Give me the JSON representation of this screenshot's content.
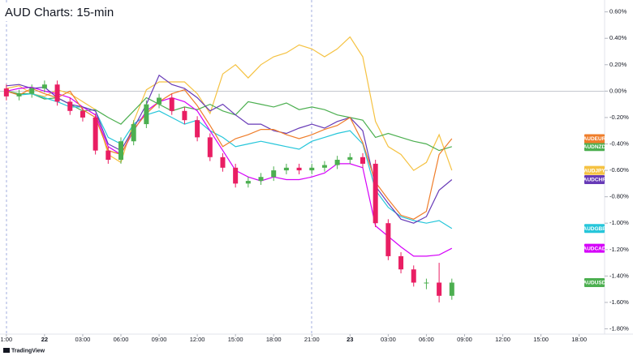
{
  "chart_data": {
    "type": "line",
    "title": "AUD Charts: 15-min",
    "source": "TradingView",
    "x": [
      0,
      1,
      2,
      3,
      4,
      5,
      6,
      7,
      8,
      9,
      10,
      11,
      12,
      13,
      14,
      15,
      16,
      17,
      18,
      19,
      20,
      21,
      22,
      23,
      24,
      25,
      26,
      27,
      28,
      29,
      30,
      31,
      32,
      33,
      34,
      35
    ],
    "xlim": [
      -0.5,
      47
    ],
    "ylim": [
      -1.84,
      0.69
    ],
    "reference_line": 0,
    "xticks": [
      {
        "value": 0,
        "label": "1:00"
      },
      {
        "value": 3,
        "label": "22"
      },
      {
        "value": 6,
        "label": "03:00"
      },
      {
        "value": 9,
        "label": "06:00"
      },
      {
        "value": 12,
        "label": "09:00"
      },
      {
        "value": 15,
        "label": "12:00"
      },
      {
        "value": 18,
        "label": "15:00"
      },
      {
        "value": 21,
        "label": "18:00"
      },
      {
        "value": 24,
        "label": "21:00"
      },
      {
        "value": 27,
        "label": "23"
      },
      {
        "value": 30,
        "label": "03:00"
      },
      {
        "value": 33,
        "label": "06:00"
      },
      {
        "value": 36,
        "label": "09:00"
      },
      {
        "value": 39,
        "label": "12:00"
      },
      {
        "value": 42,
        "label": "15:00"
      },
      {
        "value": 45,
        "label": "18:00"
      }
    ],
    "yticks": [
      {
        "value": 0.6,
        "label": "0.60%"
      },
      {
        "value": 0.4,
        "label": "0.40%"
      },
      {
        "value": 0.2,
        "label": "0.20%"
      },
      {
        "value": 0,
        "label": "0.00%"
      },
      {
        "value": -0.2,
        "label": "-0.20%"
      },
      {
        "value": -0.4,
        "label": "-0.40%"
      },
      {
        "value": -0.6,
        "label": "-0.60%"
      },
      {
        "value": -0.8,
        "label": "-0.80%"
      },
      {
        "value": -1.0,
        "label": "-1.00%"
      },
      {
        "value": -1.2,
        "label": "-1.20%"
      },
      {
        "value": -1.4,
        "label": "-1.40%"
      },
      {
        "value": -1.6,
        "label": "-1.60%"
      },
      {
        "value": -1.8,
        "label": "-1.80%"
      }
    ],
    "series": [
      {
        "name": "AUDJPY",
        "type": "line",
        "color": "#f5c242",
        "values": [
          0.02,
          0.04,
          -0.02,
          -0.04,
          0.01,
          -0.02,
          -0.08,
          -0.14,
          -0.48,
          -0.54,
          -0.23,
          0.01,
          0.07,
          0.07,
          0.07,
          -0.02,
          -0.17,
          0.13,
          0.2,
          0.1,
          0.2,
          0.26,
          0.29,
          0.35,
          0.32,
          0.26,
          0.32,
          0.41,
          0.26,
          -0.23,
          -0.42,
          -0.48,
          -0.6,
          -0.54,
          -0.33,
          -0.6
        ]
      },
      {
        "name": "AUDNZD",
        "type": "line",
        "color": "#4caf50",
        "values": [
          0.0,
          -0.02,
          -0.02,
          -0.06,
          -0.05,
          -0.1,
          -0.15,
          -0.14,
          -0.2,
          -0.25,
          -0.15,
          -0.05,
          -0.1,
          -0.15,
          -0.12,
          -0.14,
          -0.1,
          -0.15,
          -0.18,
          -0.08,
          -0.1,
          -0.12,
          -0.09,
          -0.14,
          -0.12,
          -0.14,
          -0.18,
          -0.2,
          -0.22,
          -0.35,
          -0.32,
          -0.35,
          -0.38,
          -0.4,
          -0.45,
          -0.42
        ]
      },
      {
        "name": "AUDGBP",
        "type": "line",
        "color": "#26c6da",
        "values": [
          0.0,
          -0.03,
          -0.02,
          -0.05,
          -0.08,
          -0.12,
          -0.12,
          -0.15,
          -0.35,
          -0.4,
          -0.25,
          -0.18,
          -0.15,
          -0.2,
          -0.25,
          -0.22,
          -0.3,
          -0.35,
          -0.42,
          -0.4,
          -0.38,
          -0.4,
          -0.42,
          -0.44,
          -0.38,
          -0.35,
          -0.32,
          -0.3,
          -0.4,
          -0.75,
          -0.88,
          -0.95,
          -0.98,
          -1.0,
          -0.98,
          -1.04
        ]
      },
      {
        "name": "AUDCAD",
        "type": "line",
        "color": "#d500f9",
        "values": [
          0.0,
          0.02,
          0.03,
          0.0,
          -0.02,
          -0.05,
          -0.12,
          -0.18,
          -0.42,
          -0.48,
          -0.3,
          -0.15,
          -0.08,
          -0.05,
          -0.08,
          -0.15,
          -0.3,
          -0.45,
          -0.6,
          -0.65,
          -0.68,
          -0.65,
          -0.67,
          -0.67,
          -0.65,
          -0.62,
          -0.55,
          -0.55,
          -0.58,
          -1.02,
          -1.1,
          -1.18,
          -1.25,
          -1.25,
          -1.24,
          -1.19
        ]
      },
      {
        "name": "AUDCHF",
        "type": "line",
        "color": "#673ab7",
        "values": [
          0.04,
          0.05,
          0.02,
          0.03,
          -0.05,
          -0.1,
          -0.12,
          -0.15,
          -0.4,
          -0.45,
          -0.28,
          -0.1,
          0.12,
          0.05,
          0.02,
          -0.05,
          -0.15,
          -0.1,
          -0.18,
          -0.25,
          -0.25,
          -0.3,
          -0.32,
          -0.28,
          -0.25,
          -0.28,
          -0.23,
          -0.2,
          -0.3,
          -0.72,
          -0.85,
          -0.97,
          -1.0,
          -0.95,
          -0.75,
          -0.67
        ]
      },
      {
        "name": "AUDEUR",
        "type": "line",
        "color": "#ef7d2a",
        "values": [
          0.0,
          -0.03,
          0.02,
          -0.02,
          -0.05,
          0.0,
          -0.14,
          -0.2,
          -0.45,
          -0.48,
          -0.29,
          -0.17,
          -0.08,
          -0.02,
          0.01,
          -0.11,
          -0.26,
          -0.42,
          -0.36,
          -0.33,
          -0.29,
          -0.29,
          -0.33,
          -0.36,
          -0.33,
          -0.29,
          -0.26,
          -0.2,
          -0.39,
          -0.69,
          -0.82,
          -0.94,
          -0.97,
          -0.91,
          -0.48,
          -0.36
        ]
      },
      {
        "name": "AUDUSD",
        "type": "candlestick",
        "color": "#4caf50",
        "up_color": "#4caf50",
        "down_color": "#e91e63",
        "open": [
          0.02,
          -0.04,
          -0.02,
          0.02,
          0.05,
          -0.08,
          -0.15,
          -0.2,
          -0.45,
          -0.52,
          -0.38,
          -0.25,
          -0.1,
          -0.05,
          -0.15,
          -0.22,
          -0.35,
          -0.5,
          -0.58,
          -0.7,
          -0.68,
          -0.65,
          -0.6,
          -0.58,
          -0.6,
          -0.58,
          -0.56,
          -0.52,
          -0.5,
          -0.55,
          -1.0,
          -1.25,
          -1.35,
          -1.45,
          -1.45,
          -1.55
        ],
        "high": [
          0.05,
          0.01,
          0.05,
          0.08,
          0.08,
          -0.05,
          -0.12,
          -0.17,
          -0.42,
          -0.35,
          -0.22,
          -0.07,
          -0.02,
          -0.02,
          -0.12,
          -0.19,
          -0.32,
          -0.47,
          -0.55,
          -0.65,
          -0.62,
          -0.57,
          -0.55,
          -0.55,
          -0.55,
          -0.53,
          -0.49,
          -0.47,
          -0.47,
          -0.52,
          -0.97,
          -1.22,
          -1.32,
          -1.42,
          -1.3,
          -1.42
        ],
        "low": [
          -0.07,
          -0.07,
          -0.05,
          -0.01,
          -0.11,
          -0.18,
          -0.23,
          -0.48,
          -0.55,
          -0.55,
          -0.41,
          -0.28,
          -0.13,
          -0.18,
          -0.25,
          -0.38,
          -0.53,
          -0.61,
          -0.73,
          -0.73,
          -0.71,
          -0.68,
          -0.63,
          -0.63,
          -0.63,
          -0.61,
          -0.59,
          -0.55,
          -0.58,
          -1.03,
          -1.28,
          -1.38,
          -1.48,
          -1.5,
          -1.6,
          -1.58
        ],
        "close": [
          -0.04,
          -0.02,
          0.02,
          0.05,
          -0.08,
          -0.15,
          -0.2,
          -0.45,
          -0.52,
          -0.38,
          -0.25,
          -0.1,
          -0.05,
          -0.15,
          -0.22,
          -0.35,
          -0.5,
          -0.58,
          -0.7,
          -0.68,
          -0.65,
          -0.6,
          -0.58,
          -0.6,
          -0.58,
          -0.56,
          -0.52,
          -0.5,
          -0.55,
          -1.0,
          -1.25,
          -1.35,
          -1.45,
          -1.45,
          -1.55,
          -1.45
        ]
      }
    ]
  }
}
